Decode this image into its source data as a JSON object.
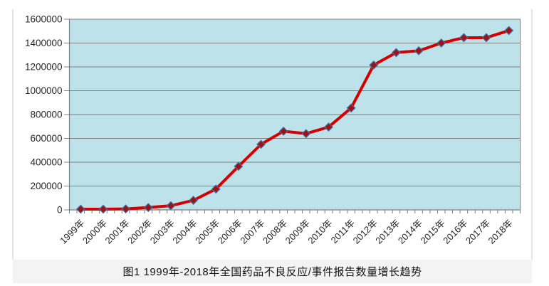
{
  "figure": {
    "caption": "图1 1999年-2018年全国药品不良反应/事件报告数量增长趋势"
  },
  "chart_data": {
    "type": "line",
    "title": "",
    "xlabel": "",
    "ylabel": "",
    "categories": [
      "1999年",
      "2000年",
      "2001年",
      "2002年",
      "2003年",
      "2004年",
      "2005年",
      "2006年",
      "2007年",
      "2008年",
      "2009年",
      "2010年",
      "2011年",
      "2012年",
      "2013年",
      "2014年",
      "2015年",
      "2016年",
      "2017年",
      "2018年"
    ],
    "values": [
      6000,
      6000,
      8000,
      20000,
      35000,
      80000,
      175000,
      365000,
      550000,
      660000,
      640000,
      695000,
      855000,
      1215000,
      1320000,
      1335000,
      1400000,
      1445000,
      1445000,
      1505000
    ],
    "ylim": [
      0,
      1600000
    ],
    "ytick_interval": 200000,
    "yticks": [
      "0",
      "200000",
      "400000",
      "600000",
      "800000",
      "1000000",
      "1200000",
      "1400000",
      "1600000"
    ],
    "grid": "horizontal",
    "legend_position": "none",
    "marker": "diamond",
    "colors": {
      "plot_bg": "#bee2e9",
      "line": "#d40000",
      "marker_fill": "#a60f0f",
      "marker_stroke": "#3a6ea5",
      "grid": "#7f7f7f",
      "axis": "#7f7f7f",
      "axis_text": "#262626",
      "caption_band_bg": "#f3f3f3"
    }
  }
}
